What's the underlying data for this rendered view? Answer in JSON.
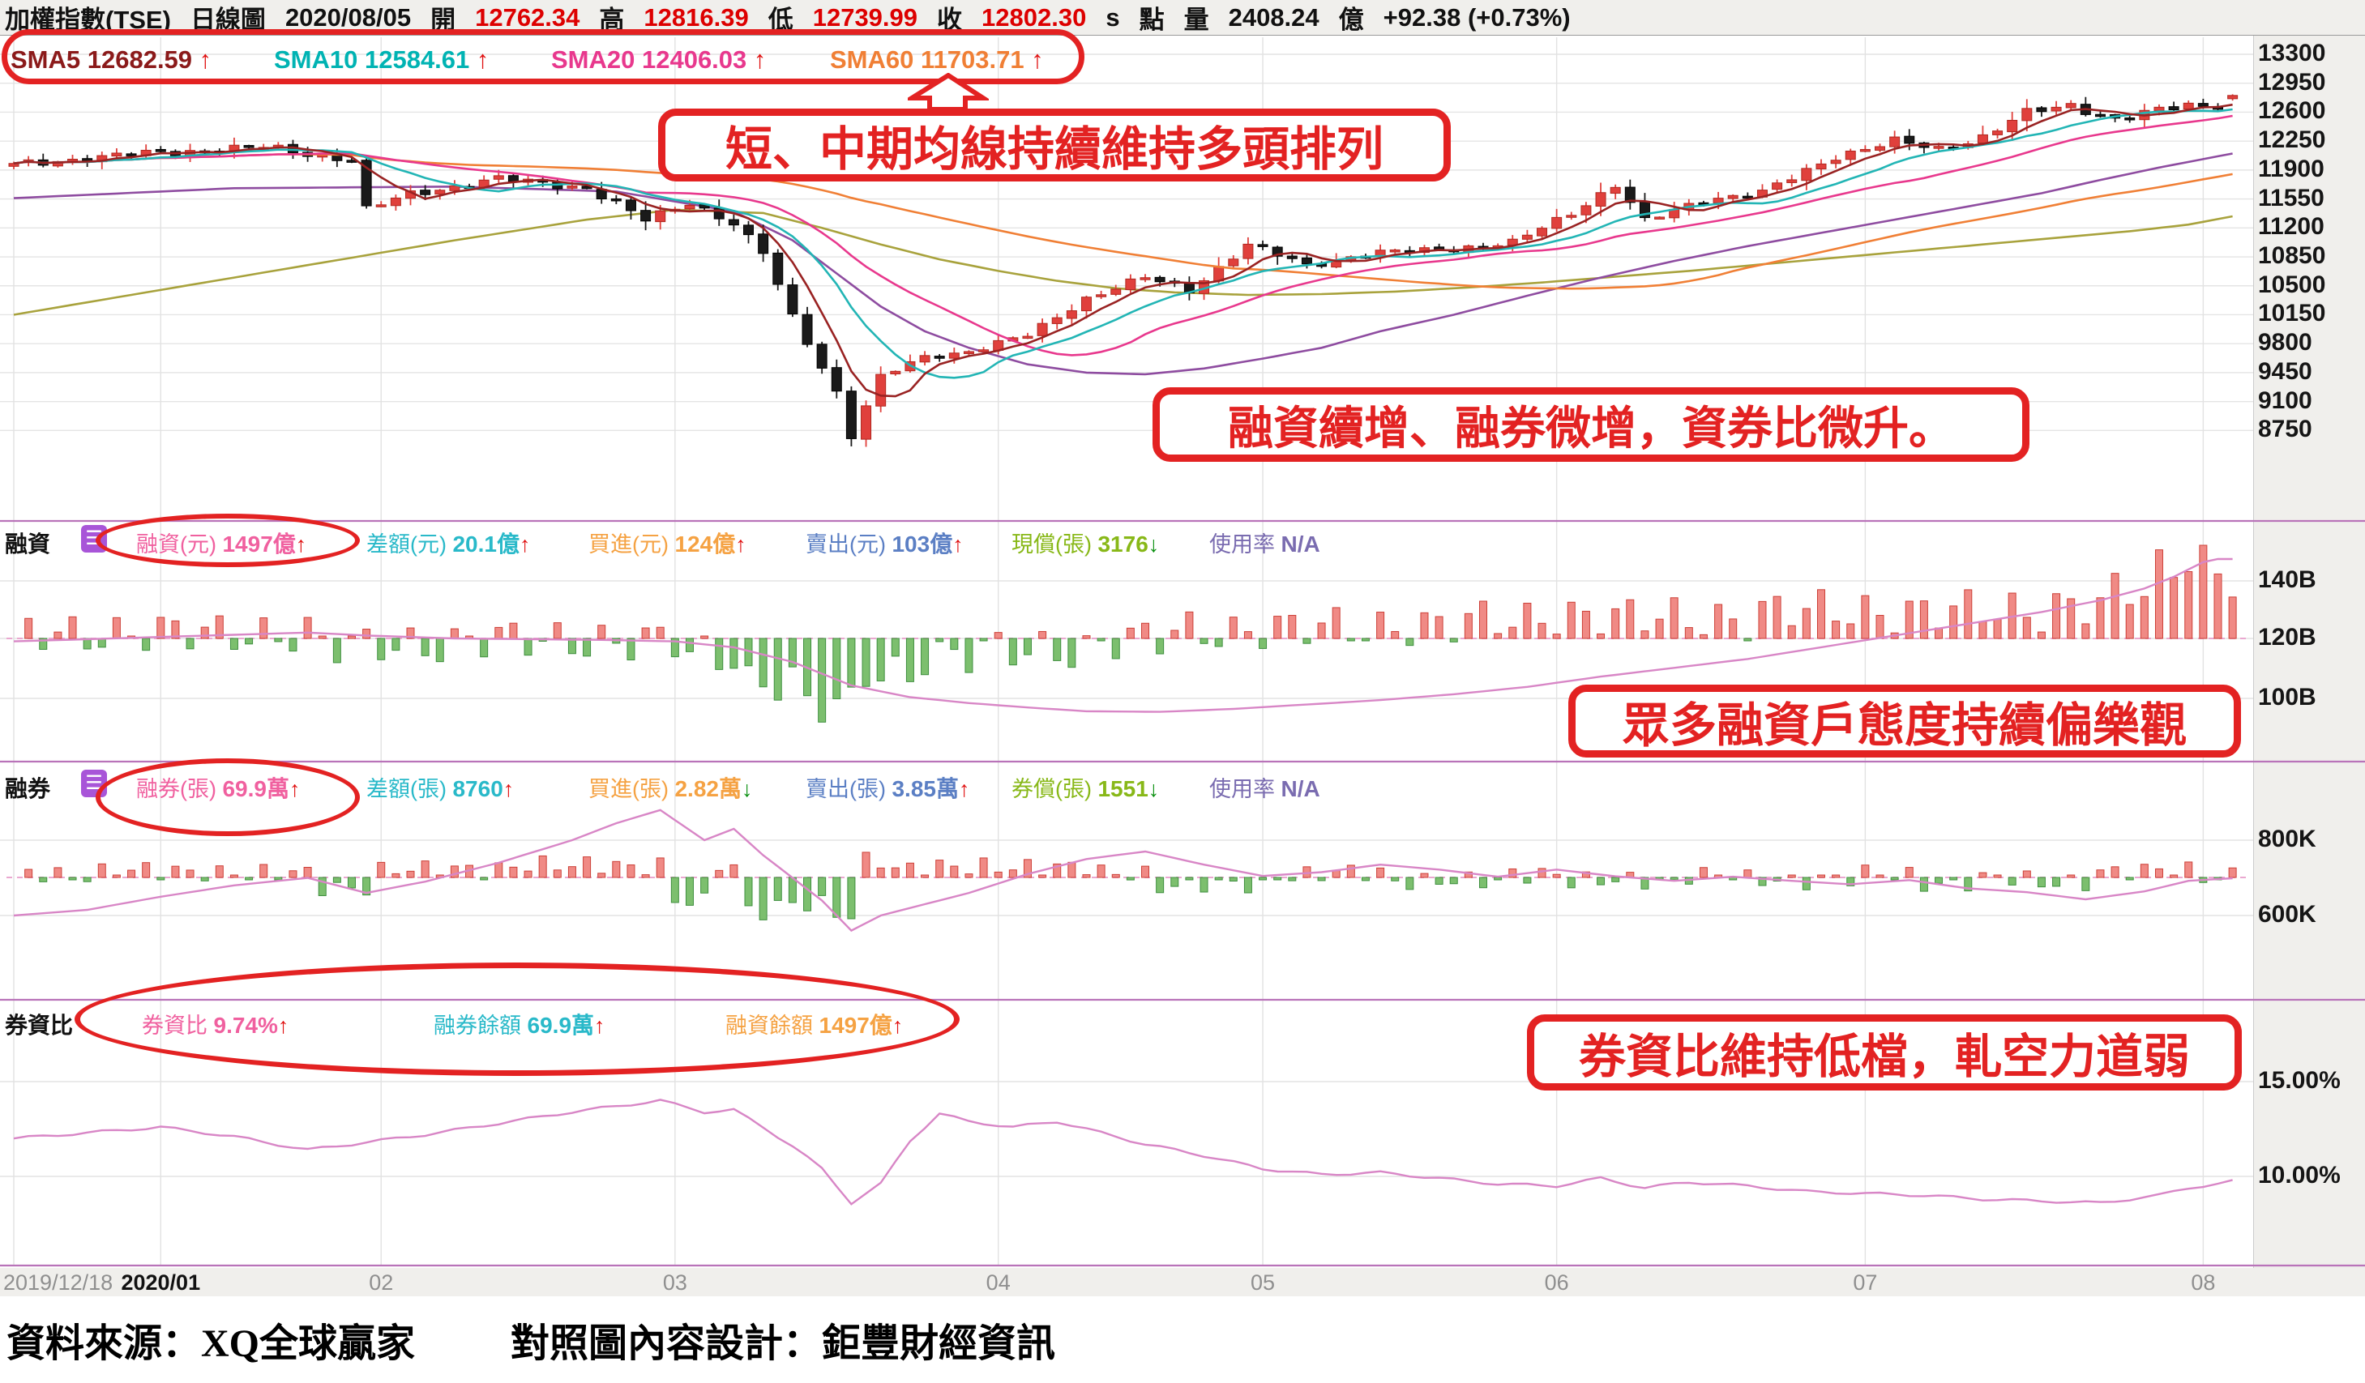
{
  "titlebar": {
    "symbol": "加權指數(TSE)",
    "period": "日線圖",
    "date": "2020/08/05",
    "open_label": "開",
    "open": "12762.34",
    "high_label": "高",
    "high": "12816.39",
    "low_label": "低",
    "low": "12739.99",
    "close_label": "收",
    "close": "12802.30",
    "s_flag": "s",
    "point_label": "點",
    "vol_label": "量",
    "volume": "2408.24",
    "vol_unit": "億",
    "change": "+92.38 (+0.73%)"
  },
  "sma_legend": [
    {
      "text": "SMA5 12682.59",
      "dir": "up",
      "color": "#8b1a1a"
    },
    {
      "text": "SMA10 12584.61",
      "dir": "up",
      "color": "#00b3b3"
    },
    {
      "text": "SMA20 12406.03",
      "dir": "up",
      "color": "#e8388d"
    },
    {
      "text": "SMA60 11703.71",
      "dir": "up",
      "color": "#f07f35"
    }
  ],
  "annotations": {
    "box1": "短、中期均線持續維持多頭排列",
    "box2": "融資續增、融券微增，資券比微升。",
    "box3": "眾多融資戶態度持續偏樂觀",
    "box4": "券資比維持低檔，軋空力道弱"
  },
  "panels": {
    "margin": {
      "title": "融資",
      "items": [
        {
          "label": "融資(元)",
          "value": "1497億",
          "dir": "up",
          "color": "#f0609f"
        },
        {
          "label": "差額(元)",
          "value": "20.1億",
          "dir": "up",
          "color": "#29b9c9"
        },
        {
          "label": "買進(元)",
          "value": "124億",
          "dir": "up",
          "color": "#f5a243"
        },
        {
          "label": "賣出(元)",
          "value": "103億",
          "dir": "up",
          "color": "#5b7fc4"
        },
        {
          "label": "現償(張)",
          "value": "3176",
          "dir": "down",
          "color": "#88b818"
        },
        {
          "label": "使用率",
          "value": "N/A",
          "dir": "none",
          "color": "#7a6cb0"
        }
      ],
      "axis_labels": [
        "140B",
        "120B",
        "100B"
      ]
    },
    "short": {
      "title": "融券",
      "items": [
        {
          "label": "融券(張)",
          "value": "69.9萬",
          "dir": "up",
          "color": "#f0609f"
        },
        {
          "label": "差額(張)",
          "value": "8760",
          "dir": "up",
          "color": "#29b9c9"
        },
        {
          "label": "買進(張)",
          "value": "2.82萬",
          "dir": "down",
          "color": "#f5a243"
        },
        {
          "label": "賣出(張)",
          "value": "3.85萬",
          "dir": "up",
          "color": "#5b7fc4"
        },
        {
          "label": "券償(張)",
          "value": "1551",
          "dir": "down",
          "color": "#88b818"
        },
        {
          "label": "使用率",
          "value": "N/A",
          "dir": "none",
          "color": "#7a6cb0"
        }
      ],
      "axis_labels": [
        "800K",
        "600K"
      ]
    },
    "ratio": {
      "title": "券資比",
      "items": [
        {
          "label": "券資比",
          "value": "9.74%",
          "dir": "up",
          "color": "#f0609f"
        },
        {
          "label": "融券餘額",
          "value": "69.9萬",
          "dir": "up",
          "color": "#29b9c9"
        },
        {
          "label": "融資餘額",
          "value": "1497億",
          "dir": "up",
          "color": "#f5a243"
        }
      ],
      "axis_labels": [
        "15.00%",
        "10.00%"
      ]
    }
  },
  "footer": {
    "source": "資料來源：XQ全球贏家",
    "design": "對照圖內容設計：鉅豐財經資訊"
  },
  "chart_data": {
    "type": "candlestick",
    "title": "加權指數(TSE) 日線圖",
    "date_range": [
      "2019/12/18",
      "2020/08/05"
    ],
    "days": 152,
    "last_bar": {
      "date": "2020/08/05",
      "open": 12762.34,
      "high": 12816.39,
      "low": 12739.99,
      "close": 12802.3,
      "volume_billion": 2408.24,
      "change": 92.38,
      "change_pct": 0.73
    },
    "sma_values": {
      "SMA5": 12682.59,
      "SMA10": 12584.61,
      "SMA20": 12406.03,
      "SMA60": 11703.71
    },
    "price_axis": {
      "max": 13300,
      "min": 8750,
      "step": 350,
      "tick_labels": [
        "13300",
        "12950",
        "12600",
        "12250",
        "11900",
        "11550",
        "11200",
        "10850",
        "10500",
        "10150",
        "9800",
        "9450",
        "9100",
        "8750"
      ]
    },
    "x_ticks": [
      {
        "label": "2019/12/18",
        "day": 0,
        "bold": false
      },
      {
        "label": "2020/01",
        "day": 10,
        "bold": true
      },
      {
        "label": "02",
        "day": 25,
        "bold": false
      },
      {
        "label": "03",
        "day": 45,
        "bold": false
      },
      {
        "label": "04",
        "day": 67,
        "bold": false
      },
      {
        "label": "05",
        "day": 85,
        "bold": false
      },
      {
        "label": "06",
        "day": 105,
        "bold": false
      },
      {
        "label": "07",
        "day": 126,
        "bold": false
      },
      {
        "label": "08",
        "day": 149,
        "bold": false
      }
    ],
    "price_close_anchors": [
      [
        0,
        11970
      ],
      [
        9,
        12100
      ],
      [
        17,
        12179
      ],
      [
        23,
        12024
      ],
      [
        24,
        11421
      ],
      [
        27,
        11612
      ],
      [
        33,
        11793
      ],
      [
        39,
        11686
      ],
      [
        43,
        11292
      ],
      [
        46,
        11514
      ],
      [
        49,
        11250
      ],
      [
        51,
        10893
      ],
      [
        53,
        10128
      ],
      [
        56,
        9218
      ],
      [
        57,
        8681
      ],
      [
        59,
        9394
      ],
      [
        62,
        9644
      ],
      [
        65,
        9708
      ],
      [
        69,
        9900
      ],
      [
        73,
        10351
      ],
      [
        77,
        10597
      ],
      [
        80,
        10450
      ],
      [
        84,
        10992
      ],
      [
        88,
        10750
      ],
      [
        92,
        10884
      ],
      [
        97,
        10942
      ],
      [
        102,
        11014
      ],
      [
        106,
        11389
      ],
      [
        109,
        11720
      ],
      [
        111,
        11276
      ],
      [
        115,
        11548
      ],
      [
        119,
        11621
      ],
      [
        124,
        12073
      ],
      [
        128,
        12244
      ],
      [
        131,
        12155
      ],
      [
        134,
        12304
      ],
      [
        137,
        12588
      ],
      [
        140,
        12686
      ],
      [
        143,
        12513
      ],
      [
        146,
        12620
      ],
      [
        148,
        12686
      ],
      [
        150,
        12663
      ],
      [
        151,
        12802
      ]
    ],
    "ma_long_purple_anchors": [
      [
        0,
        11560
      ],
      [
        15,
        11680
      ],
      [
        30,
        11700
      ],
      [
        41,
        11640
      ],
      [
        49,
        11400
      ],
      [
        53,
        11050
      ],
      [
        56,
        10650
      ],
      [
        59,
        10250
      ],
      [
        62,
        9950
      ],
      [
        65,
        9750
      ],
      [
        69,
        9550
      ],
      [
        73,
        9450
      ],
      [
        77,
        9430
      ],
      [
        81,
        9500
      ],
      [
        85,
        9620
      ],
      [
        89,
        9750
      ],
      [
        93,
        9950
      ],
      [
        98,
        10150
      ],
      [
        103,
        10380
      ],
      [
        108,
        10600
      ],
      [
        113,
        10800
      ],
      [
        118,
        10980
      ],
      [
        123,
        11140
      ],
      [
        128,
        11300
      ],
      [
        133,
        11460
      ],
      [
        138,
        11620
      ],
      [
        142,
        11780
      ],
      [
        146,
        11930
      ],
      [
        151,
        12100
      ]
    ],
    "ma_long_olive_anchors": [
      [
        0,
        10150
      ],
      [
        10,
        10450
      ],
      [
        20,
        10750
      ],
      [
        30,
        11050
      ],
      [
        39,
        11300
      ],
      [
        45,
        11420
      ],
      [
        51,
        11380
      ],
      [
        55,
        11200
      ],
      [
        59,
        11000
      ],
      [
        63,
        10820
      ],
      [
        67,
        10680
      ],
      [
        71,
        10560
      ],
      [
        75,
        10470
      ],
      [
        79,
        10420
      ],
      [
        84,
        10390
      ],
      [
        89,
        10400
      ],
      [
        94,
        10430
      ],
      [
        99,
        10480
      ],
      [
        104,
        10540
      ],
      [
        109,
        10610
      ],
      [
        114,
        10680
      ],
      [
        119,
        10760
      ],
      [
        124,
        10840
      ],
      [
        129,
        10920
      ],
      [
        134,
        11000
      ],
      [
        139,
        11080
      ],
      [
        144,
        11160
      ],
      [
        148,
        11240
      ],
      [
        151,
        11340
      ]
    ],
    "margin_panel": {
      "name": "融資",
      "unit": "billion NTD",
      "last_balance_e8": 1497,
      "diff_e8": 20.1,
      "buy_e8": 124,
      "sell_e8": 103,
      "cash_repay": 3176,
      "axis": {
        "labels": [
          "140B",
          "120B",
          "100B"
        ],
        "values": [
          140,
          120,
          100
        ]
      },
      "balance_anchors": [
        [
          0,
          119
        ],
        [
          10,
          120.5
        ],
        [
          20,
          122
        ],
        [
          24,
          121
        ],
        [
          30,
          120
        ],
        [
          40,
          119.5
        ],
        [
          45,
          119
        ],
        [
          49,
          117
        ],
        [
          53,
          112
        ],
        [
          57,
          104
        ],
        [
          61,
          100
        ],
        [
          65,
          98
        ],
        [
          69,
          96.5
        ],
        [
          73,
          95.2
        ],
        [
          78,
          95
        ],
        [
          83,
          96
        ],
        [
          88,
          97.5
        ],
        [
          93,
          99
        ],
        [
          98,
          101
        ],
        [
          103,
          103.5
        ],
        [
          108,
          107
        ],
        [
          113,
          110
        ],
        [
          118,
          113
        ],
        [
          123,
          117
        ],
        [
          128,
          121
        ],
        [
          133,
          125
        ],
        [
          138,
          129
        ],
        [
          142,
          133
        ],
        [
          145,
          137
        ],
        [
          147,
          141
        ],
        [
          149,
          146
        ],
        [
          151,
          149.7
        ]
      ]
    },
    "short_panel": {
      "name": "融券",
      "unit": "thousand lots",
      "last_balance_wan": 69.9,
      "diff": 8760,
      "buy_wan": 2.82,
      "sell_wan": 3.85,
      "repay": 1551,
      "axis": {
        "labels": [
          "800K",
          "600K"
        ],
        "values": [
          800,
          600
        ]
      },
      "balance_anchors": [
        [
          0,
          600
        ],
        [
          5,
          615
        ],
        [
          10,
          650
        ],
        [
          15,
          680
        ],
        [
          20,
          700
        ],
        [
          24,
          660
        ],
        [
          28,
          690
        ],
        [
          33,
          740
        ],
        [
          38,
          800
        ],
        [
          41,
          845
        ],
        [
          44,
          880
        ],
        [
          47,
          800
        ],
        [
          49,
          830
        ],
        [
          51,
          760
        ],
        [
          53,
          700
        ],
        [
          55,
          640
        ],
        [
          57,
          560
        ],
        [
          59,
          600
        ],
        [
          62,
          630
        ],
        [
          65,
          660
        ],
        [
          69,
          710
        ],
        [
          73,
          750
        ],
        [
          77,
          770
        ],
        [
          81,
          735
        ],
        [
          85,
          705
        ],
        [
          89,
          715
        ],
        [
          93,
          735
        ],
        [
          97,
          722
        ],
        [
          101,
          703
        ],
        [
          105,
          722
        ],
        [
          109,
          704
        ],
        [
          113,
          692
        ],
        [
          117,
          703
        ],
        [
          121,
          692
        ],
        [
          125,
          683
        ],
        [
          129,
          694
        ],
        [
          133,
          672
        ],
        [
          137,
          662
        ],
        [
          141,
          643
        ],
        [
          145,
          664
        ],
        [
          148,
          692
        ],
        [
          151,
          699
        ]
      ]
    },
    "ratio_panel": {
      "name": "券資比",
      "last_pct": 9.74,
      "axis": {
        "labels": [
          "15.00%",
          "10.00%"
        ],
        "values": [
          15,
          10
        ]
      },
      "ratio_anchors": [
        [
          0,
          12.0
        ],
        [
          5,
          12.3
        ],
        [
          10,
          12.6
        ],
        [
          15,
          12.1
        ],
        [
          20,
          11.4
        ],
        [
          24,
          11.8
        ],
        [
          28,
          12.2
        ],
        [
          33,
          12.8
        ],
        [
          38,
          13.4
        ],
        [
          42,
          13.8
        ],
        [
          44,
          14.0
        ],
        [
          47,
          13.4
        ],
        [
          49,
          13.5
        ],
        [
          51,
          12.6
        ],
        [
          53,
          11.6
        ],
        [
          55,
          10.4
        ],
        [
          57,
          8.6
        ],
        [
          59,
          9.6
        ],
        [
          61,
          11.9
        ],
        [
          63,
          13.3
        ],
        [
          65,
          12.9
        ],
        [
          68,
          12.6
        ],
        [
          71,
          12.9
        ],
        [
          74,
          12.3
        ],
        [
          77,
          11.7
        ],
        [
          81,
          11.1
        ],
        [
          85,
          10.4
        ],
        [
          89,
          10.1
        ],
        [
          93,
          10.2
        ],
        [
          97,
          9.9
        ],
        [
          101,
          9.6
        ],
        [
          105,
          9.5
        ],
        [
          108,
          9.9
        ],
        [
          111,
          9.4
        ],
        [
          114,
          9.7
        ],
        [
          118,
          9.5
        ],
        [
          122,
          9.2
        ],
        [
          126,
          9.1
        ],
        [
          130,
          9.0
        ],
        [
          134,
          8.8
        ],
        [
          138,
          8.7
        ],
        [
          142,
          8.6
        ],
        [
          146,
          9.0
        ],
        [
          148,
          9.4
        ],
        [
          150,
          9.6
        ],
        [
          151,
          9.74
        ]
      ]
    },
    "colors": {
      "candle_up": "#e0403c",
      "candle_down": "#1a1a1a",
      "sma5": "#992222",
      "sma10": "#22b5b5",
      "sma20": "#e8388d",
      "sma60": "#f07f35",
      "ma_purple": "#8e4ca0",
      "ma_olive": "#a8a23c",
      "bar_up_fill": "#f08a85",
      "bar_up_stroke": "#cc4038",
      "bar_dn_fill": "#7cbf6e",
      "bar_dn_stroke": "#3f8f3f",
      "panel_line": "#d886c6",
      "baseline_dash": "#eaa8d0",
      "annotation_red": "#e32222",
      "separator_violet": "#b973b9"
    }
  }
}
